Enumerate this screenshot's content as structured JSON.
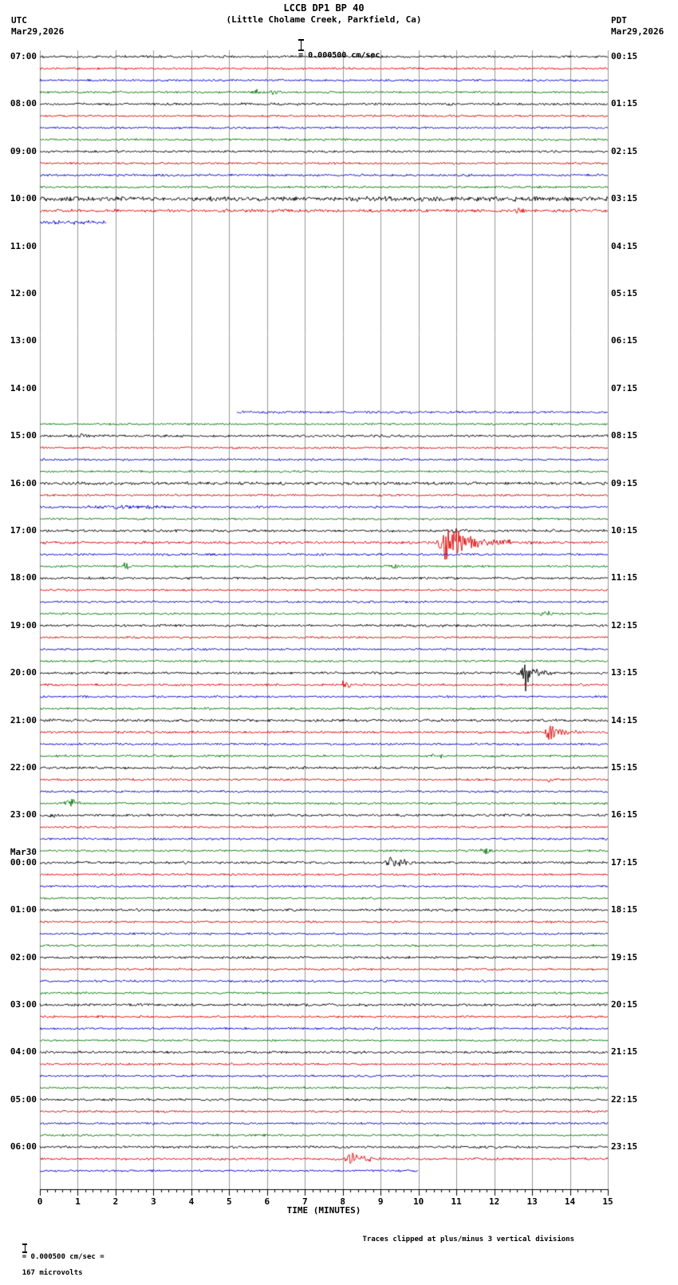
{
  "header": {
    "title": "LCCB DP1 BP 40",
    "subtitle": "(Little Cholame Creek, Parkfield, Ca)",
    "left_tz": "UTC",
    "left_date": "Mar29,2026",
    "right_tz": "PDT",
    "right_date": "Mar29,2026",
    "scale_label": "= 0.000500 cm/sec"
  },
  "footer": {
    "left_scale": "= 0.000500 cm/sec =",
    "left_value": "167 microvolts",
    "right_note": "Traces clipped at plus/minus 3 vertical divisions"
  },
  "chart_data": {
    "type": "line",
    "subtype": "helicorder-seismogram",
    "station": "LCCB DP1 BP 40",
    "location": "(Little Cholame Creek, Parkfield, Ca)",
    "xlabel": "TIME (MINUTES)",
    "x_range": [
      0,
      15
    ],
    "x_ticks": [
      "0",
      "1",
      "2",
      "3",
      "4",
      "5",
      "6",
      "7",
      "8",
      "9",
      "10",
      "11",
      "12",
      "13",
      "14",
      "15"
    ],
    "minutes_per_line": 15,
    "timezone_left": "UTC",
    "timezone_right": "PDT",
    "colors": {
      "k": "#000000",
      "r": "#dd0000",
      "b": "#0000cc",
      "g": "#007700",
      "grid": "#999999",
      "axis": "#000000"
    },
    "left_labels": [
      {
        "row": 0,
        "text": "07:00"
      },
      {
        "row": 4,
        "text": "08:00"
      },
      {
        "row": 8,
        "text": "09:00"
      },
      {
        "row": 12,
        "text": "10:00"
      },
      {
        "row": 16,
        "text": "11:00"
      },
      {
        "row": 20,
        "text": "12:00"
      },
      {
        "row": 24,
        "text": "13:00"
      },
      {
        "row": 28,
        "text": "14:00"
      },
      {
        "row": 32,
        "text": "15:00"
      },
      {
        "row": 36,
        "text": "16:00"
      },
      {
        "row": 40,
        "text": "17:00"
      },
      {
        "row": 44,
        "text": "18:00"
      },
      {
        "row": 48,
        "text": "19:00"
      },
      {
        "row": 52,
        "text": "20:00"
      },
      {
        "row": 56,
        "text": "21:00"
      },
      {
        "row": 60,
        "text": "22:00"
      },
      {
        "row": 64,
        "text": "23:00"
      },
      {
        "row": 68,
        "text": "00:00",
        "date": "Mar30"
      },
      {
        "row": 72,
        "text": "01:00"
      },
      {
        "row": 76,
        "text": "02:00"
      },
      {
        "row": 80,
        "text": "03:00"
      },
      {
        "row": 84,
        "text": "04:00"
      },
      {
        "row": 88,
        "text": "05:00"
      },
      {
        "row": 92,
        "text": "06:00"
      }
    ],
    "right_labels": [
      {
        "row": 0,
        "text": "00:15"
      },
      {
        "row": 4,
        "text": "01:15"
      },
      {
        "row": 8,
        "text": "02:15"
      },
      {
        "row": 12,
        "text": "03:15"
      },
      {
        "row": 16,
        "text": "04:15"
      },
      {
        "row": 20,
        "text": "05:15"
      },
      {
        "row": 24,
        "text": "06:15"
      },
      {
        "row": 28,
        "text": "07:15"
      },
      {
        "row": 32,
        "text": "08:15"
      },
      {
        "row": 36,
        "text": "09:15"
      },
      {
        "row": 40,
        "text": "10:15"
      },
      {
        "row": 44,
        "text": "11:15"
      },
      {
        "row": 48,
        "text": "12:15"
      },
      {
        "row": 52,
        "text": "13:15"
      },
      {
        "row": 56,
        "text": "14:15"
      },
      {
        "row": 60,
        "text": "15:15"
      },
      {
        "row": 64,
        "text": "16:15"
      },
      {
        "row": 68,
        "text": "17:15"
      },
      {
        "row": 72,
        "text": "18:15"
      },
      {
        "row": 76,
        "text": "19:15"
      },
      {
        "row": 80,
        "text": "20:15"
      },
      {
        "row": 84,
        "text": "21:15"
      },
      {
        "row": 88,
        "text": "22:15"
      },
      {
        "row": 92,
        "text": "23:15"
      }
    ],
    "rows": [
      {
        "c": "k",
        "n": 1.3
      },
      {
        "c": "r",
        "n": 1.2
      },
      {
        "c": "b",
        "n": 1.2,
        "ev": [
          {
            "m": 4.7,
            "a": 2.2,
            "d": 0.15,
            "sym": 1
          }
        ]
      },
      {
        "c": "g",
        "n": 1.2,
        "ev": [
          {
            "m": 5.75,
            "a": 3.5,
            "d": 0.12,
            "sym": 1
          },
          {
            "m": 6.2,
            "a": 2.5,
            "d": 0.1,
            "sym": 1
          }
        ]
      },
      {
        "c": "k",
        "n": 1.4
      },
      {
        "c": "r",
        "n": 1.2
      },
      {
        "c": "b",
        "n": 1.2
      },
      {
        "c": "g",
        "n": 1.2
      },
      {
        "c": "k",
        "n": 1.3
      },
      {
        "c": "r",
        "n": 1.2
      },
      {
        "c": "b",
        "n": 1.3
      },
      {
        "c": "g",
        "n": 1.2
      },
      {
        "c": "k",
        "n": 2.6
      },
      {
        "c": "r",
        "n": 1.7,
        "ev": [
          {
            "m": 12.55,
            "a": 5,
            "d": 0.25
          }
        ]
      },
      {
        "c": "b",
        "n": 2.2,
        "seg": [
          [
            0,
            1.75
          ]
        ]
      },
      {
        "c": "g",
        "n": 0,
        "seg": []
      },
      {
        "c": "k",
        "n": 0,
        "seg": []
      },
      {
        "c": "r",
        "n": 0,
        "seg": []
      },
      {
        "c": "b",
        "n": 0,
        "seg": []
      },
      {
        "c": "g",
        "n": 0,
        "seg": []
      },
      {
        "c": "k",
        "n": 0,
        "seg": []
      },
      {
        "c": "r",
        "n": 0,
        "seg": []
      },
      {
        "c": "b",
        "n": 0,
        "seg": []
      },
      {
        "c": "g",
        "n": 0,
        "seg": []
      },
      {
        "c": "k",
        "n": 0,
        "seg": []
      },
      {
        "c": "r",
        "n": 0,
        "seg": []
      },
      {
        "c": "b",
        "n": 0,
        "seg": []
      },
      {
        "c": "g",
        "n": 0,
        "seg": []
      },
      {
        "c": "k",
        "n": 0,
        "seg": []
      },
      {
        "c": "r",
        "n": 0,
        "seg": []
      },
      {
        "c": "b",
        "n": 1.4,
        "seg": [
          [
            5.2,
            15
          ]
        ]
      },
      {
        "c": "g",
        "n": 1.1
      },
      {
        "c": "k",
        "n": 1.4,
        "ev": [
          {
            "m": 1.15,
            "a": 3,
            "d": 0.12,
            "sym": 1
          }
        ]
      },
      {
        "c": "r",
        "n": 1.2
      },
      {
        "c": "b",
        "n": 1.2
      },
      {
        "c": "g",
        "n": 1.2
      },
      {
        "c": "k",
        "n": 1.7
      },
      {
        "c": "r",
        "n": 1.2
      },
      {
        "c": "b",
        "n": 1.3,
        "ev": [
          {
            "m": 2.2,
            "a": 1.8,
            "d": 0.8,
            "sym": 1
          }
        ]
      },
      {
        "c": "g",
        "n": 1.2
      },
      {
        "c": "k",
        "n": 1.5,
        "ev": [
          {
            "m": 10.78,
            "a": 3,
            "d": 0.3
          }
        ]
      },
      {
        "c": "r",
        "n": 1.5,
        "ev": [
          {
            "m": 10.72,
            "a": 26,
            "d": 0.55,
            "att": 0.12
          },
          {
            "m": 12.0,
            "a": 4,
            "d": 0.8
          }
        ]
      },
      {
        "c": "b",
        "n": 1.3
      },
      {
        "c": "g",
        "n": 1.2,
        "ev": [
          {
            "m": 2.3,
            "a": 4,
            "d": 0.12,
            "sym": 1
          },
          {
            "m": 9.3,
            "a": 3.5,
            "d": 0.12,
            "sym": 1
          }
        ]
      },
      {
        "c": "k",
        "n": 1.4
      },
      {
        "c": "r",
        "n": 1.2
      },
      {
        "c": "b",
        "n": 1.2
      },
      {
        "c": "g",
        "n": 1.2,
        "ev": [
          {
            "m": 13.37,
            "a": 4,
            "d": 0.12,
            "sym": 1
          }
        ]
      },
      {
        "c": "k",
        "n": 1.4
      },
      {
        "c": "r",
        "n": 1.2
      },
      {
        "c": "b",
        "n": 1.2
      },
      {
        "c": "g",
        "n": 1.2
      },
      {
        "c": "k",
        "n": 1.4,
        "ev": [
          {
            "m": 12.8,
            "a": 15,
            "d": 0.3,
            "att": 0.08
          },
          {
            "m": 12.83,
            "a": 42,
            "d": 0.045,
            "att": 0.03
          }
        ]
      },
      {
        "c": "r",
        "n": 1.3,
        "ev": [
          {
            "m": 8.0,
            "a": 5,
            "d": 0.3
          }
        ]
      },
      {
        "c": "b",
        "n": 1.2
      },
      {
        "c": "g",
        "n": 1.2
      },
      {
        "c": "k",
        "n": 1.6
      },
      {
        "c": "r",
        "n": 1.3,
        "ev": [
          {
            "m": 13.44,
            "a": 14,
            "d": 0.3,
            "att": 0.08
          }
        ]
      },
      {
        "c": "b",
        "n": 1.2
      },
      {
        "c": "g",
        "n": 1.2,
        "ev": [
          {
            "m": 10.53,
            "a": 4,
            "d": 0.12,
            "sym": 1
          }
        ]
      },
      {
        "c": "k",
        "n": 1.4
      },
      {
        "c": "r",
        "n": 1.2,
        "ev": [
          {
            "m": 13.4,
            "a": 3,
            "d": 0.1,
            "sym": 1
          }
        ]
      },
      {
        "c": "b",
        "n": 1.2
      },
      {
        "c": "g",
        "n": 1.2,
        "ev": [
          {
            "m": 0.84,
            "a": 5,
            "d": 0.15,
            "sym": 1
          }
        ]
      },
      {
        "c": "k",
        "n": 1.4,
        "ev": [
          {
            "m": 0.3,
            "a": 4,
            "d": 0.12,
            "sym": 1
          }
        ]
      },
      {
        "c": "r",
        "n": 1.2
      },
      {
        "c": "b",
        "n": 1.2
      },
      {
        "c": "g",
        "n": 1.2,
        "ev": [
          {
            "m": 11.78,
            "a": 3.5,
            "d": 0.12,
            "sym": 1
          }
        ]
      },
      {
        "c": "k",
        "n": 1.4,
        "ev": [
          {
            "m": 9.27,
            "a": 9,
            "d": 0.35,
            "att": 0.1
          }
        ]
      },
      {
        "c": "r",
        "n": 1.2
      },
      {
        "c": "b",
        "n": 1.2
      },
      {
        "c": "g",
        "n": 1.2
      },
      {
        "c": "k",
        "n": 1.4
      },
      {
        "c": "r",
        "n": 1.2
      },
      {
        "c": "b",
        "n": 1.2
      },
      {
        "c": "g",
        "n": 1.2
      },
      {
        "c": "k",
        "n": 1.4
      },
      {
        "c": "r",
        "n": 1.2
      },
      {
        "c": "b",
        "n": 1.2
      },
      {
        "c": "g",
        "n": 1.2
      },
      {
        "c": "k",
        "n": 1.5
      },
      {
        "c": "r",
        "n": 1.2
      },
      {
        "c": "b",
        "n": 1.2
      },
      {
        "c": "g",
        "n": 1.2
      },
      {
        "c": "k",
        "n": 1.4
      },
      {
        "c": "r",
        "n": 1.2
      },
      {
        "c": "b",
        "n": 1.2
      },
      {
        "c": "g",
        "n": 1.2
      },
      {
        "c": "k",
        "n": 1.4
      },
      {
        "c": "r",
        "n": 1.2
      },
      {
        "c": "b",
        "n": 1.2
      },
      {
        "c": "g",
        "n": 1.2
      },
      {
        "c": "k",
        "n": 1.4
      },
      {
        "c": "r",
        "n": 1.3,
        "ev": [
          {
            "m": 8.2,
            "a": 9,
            "d": 0.4,
            "att": 0.1
          }
        ]
      },
      {
        "c": "b",
        "n": 1.2,
        "seg": [
          [
            0,
            10.0
          ]
        ]
      }
    ]
  }
}
